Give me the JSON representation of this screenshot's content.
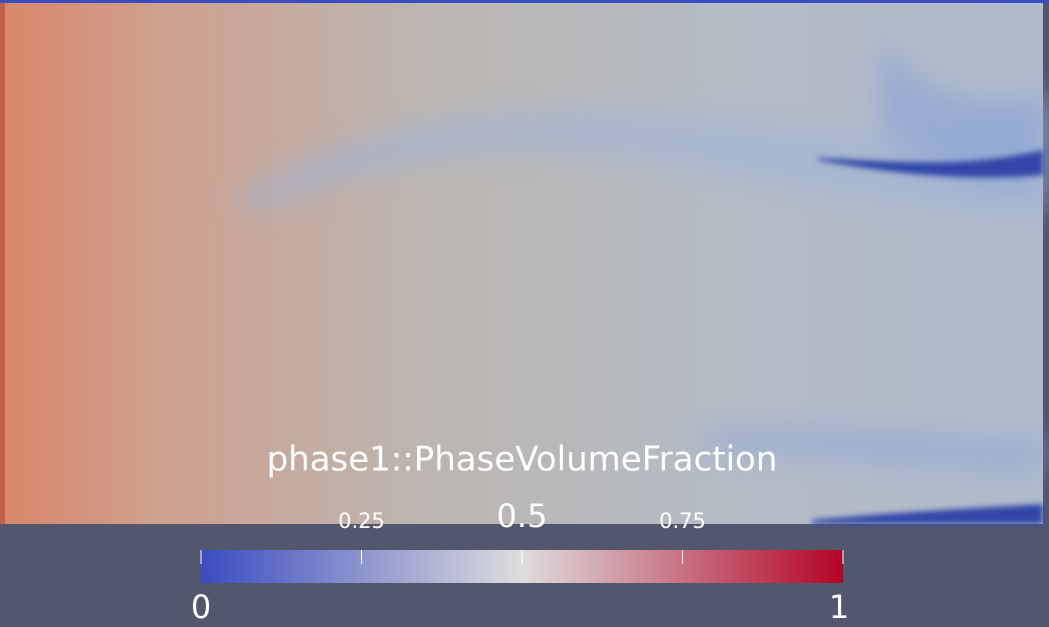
{
  "colorbar": {
    "title": "phase1::PhaseVolumeFraction",
    "range": [
      0,
      1
    ],
    "ticks": [
      0.25,
      0.5,
      0.75
    ],
    "colormap": [
      "#3b4cc0",
      "#dddddd",
      "#b40426"
    ]
  }
}
